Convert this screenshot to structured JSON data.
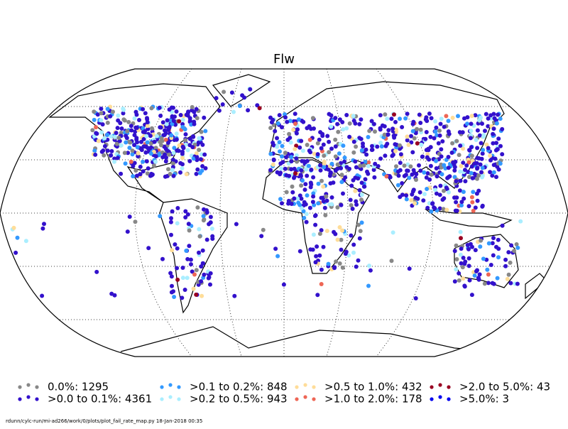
{
  "title": "Flw",
  "legend": [
    {
      "label": "0.0%: 1295",
      "color": "#888888"
    },
    {
      "label": ">0.0 to 0.1%: 4361",
      "color": "#3311cc"
    },
    {
      "label": ">0.1 to 0.2%: 848",
      "color": "#3399ff"
    },
    {
      "label": ">0.2 to 0.5%: 943",
      "color": "#aaeeff"
    },
    {
      "label": ">0.5 to 1.0%: 432",
      "color": "#ffdd99"
    },
    {
      "label": ">1.0 to 2.0%: 178",
      "color": "#ee6655"
    },
    {
      "label": ">2.0 to 5.0%: 43",
      "color": "#990022"
    },
    {
      "label": ">5.0%: 3",
      "color": "#0000ee"
    }
  ],
  "footer": "rdunn/cylc-run/mi-ad266/work/0/plots/plot_fail_rate_map.py   18-Jan-2018 00:35"
}
